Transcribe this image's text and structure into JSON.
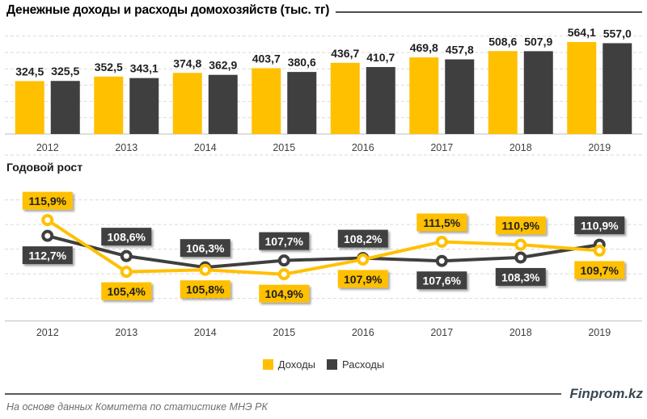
{
  "header": {
    "title": "Денежные доходы и расходы домохозяйств (тыс. тг)"
  },
  "colors": {
    "income": "#FFC000",
    "expense": "#3F3F3F",
    "grid": "#D9D9D9",
    "axis": "#C9C9C9",
    "bar_label": "#1F1F1F",
    "year_label": "#404040",
    "title_rule": "#4D4D4D",
    "label_text_on_income": "#1F1F1F",
    "label_text_on_expense": "#FFFFFF",
    "brand": "#3A4750",
    "source": "#6E6E6E"
  },
  "chart_data": [
    {
      "type": "bar",
      "title": "Денежные доходы и расходы домохозяйств (тыс. тг)",
      "categories": [
        "2012",
        "2013",
        "2014",
        "2015",
        "2016",
        "2017",
        "2018",
        "2019"
      ],
      "series": [
        {
          "id": "income",
          "name": "Доходы",
          "color": "#FFC000",
          "values": [
            324.5,
            352.5,
            374.8,
            403.7,
            436.7,
            469.8,
            508.6,
            564.1
          ]
        },
        {
          "id": "expense",
          "name": "Расходы",
          "color": "#3F3F3F",
          "values": [
            325.5,
            343.1,
            362.9,
            380.6,
            410.7,
            457.8,
            507.9,
            557.0
          ]
        }
      ],
      "xlabel": "",
      "ylabel": "",
      "ylim": [
        0,
        690
      ],
      "grid_step": 100,
      "grid": true,
      "value_labels": "above bars, decimal comma"
    },
    {
      "type": "line",
      "title": "Годовой рост",
      "categories": [
        "2012",
        "2013",
        "2014",
        "2015",
        "2016",
        "2017",
        "2018",
        "2019"
      ],
      "series": [
        {
          "id": "income",
          "name": "Доходы",
          "color": "#FFC000",
          "values": [
            115.9,
            105.4,
            105.8,
            104.9,
            107.9,
            111.5,
            110.9,
            109.7
          ],
          "label_position": [
            "above",
            "below",
            "below",
            "below",
            "below",
            "above",
            "above",
            "below"
          ]
        },
        {
          "id": "expense",
          "name": "Расходы",
          "color": "#3F3F3F",
          "values": [
            112.7,
            108.6,
            106.3,
            107.7,
            108.2,
            107.6,
            108.3,
            110.9
          ],
          "label_position": [
            "below",
            "above",
            "above",
            "above",
            "above",
            "below",
            "below",
            "above"
          ]
        }
      ],
      "unit": "%",
      "xlabel": "",
      "ylabel": "",
      "ylim": [
        95,
        130
      ],
      "grid_step": 5,
      "grid": true,
      "marker": "open-circle",
      "value_labels": "boxed, decimal comma, percent suffix",
      "legend_position": "bottom"
    }
  ],
  "legend": {
    "items": [
      {
        "label": "Доходы",
        "color": "#FFC000"
      },
      {
        "label": "Расходы",
        "color": "#3F3F3F"
      }
    ]
  },
  "footer": {
    "brand": "Finprom.kz",
    "source": "На основе данных Комитета по статистике МНЭ РК"
  }
}
